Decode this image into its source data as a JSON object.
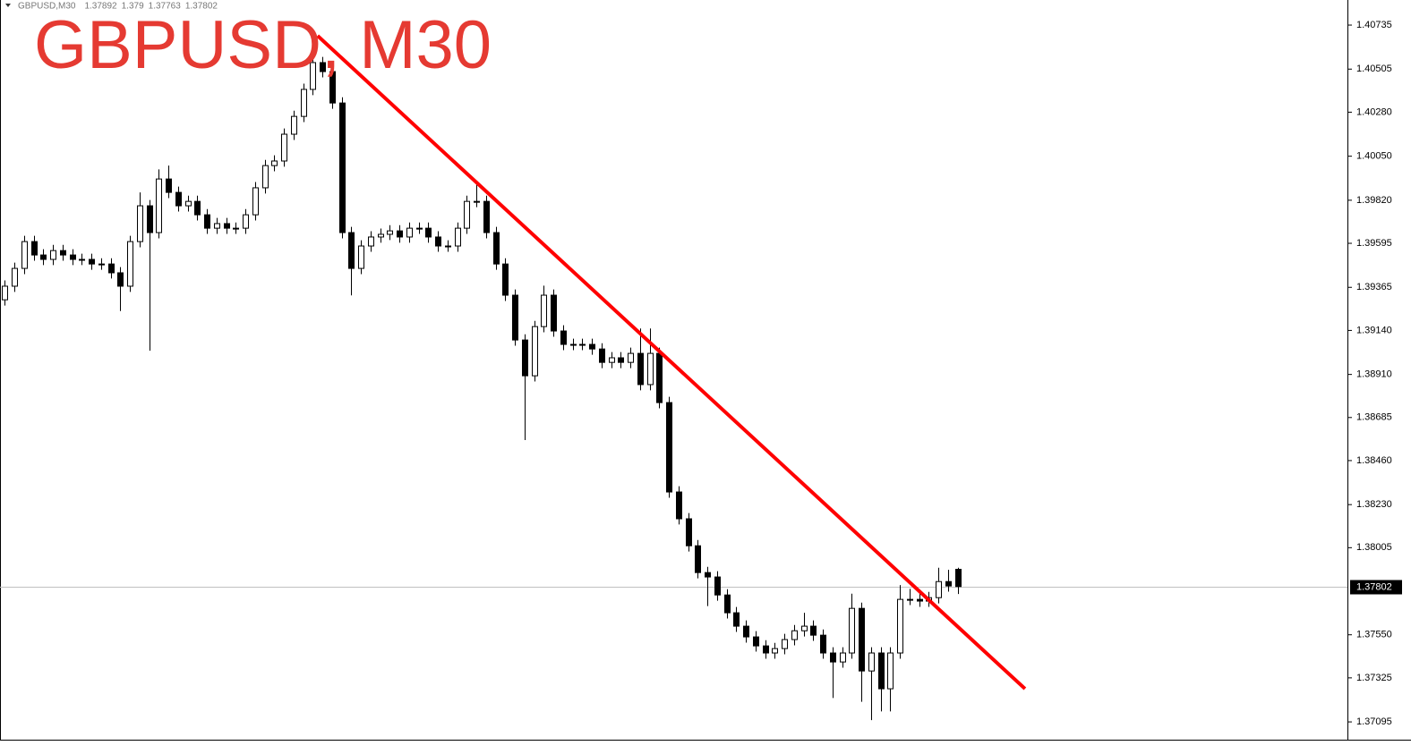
{
  "chart_data": {
    "type": "candlestick",
    "title": "GBPUSD, M30",
    "symbol": "GBPUSD,M30",
    "title_color": "#e53a32",
    "up_color": "#ffffff",
    "down_color": "#000000",
    "wick_color": "#000000",
    "open": [
      1.393,
      1.39371,
      1.39464,
      1.39604,
      1.39534,
      1.39511,
      1.39557,
      1.39534,
      1.39511,
      1.39511,
      1.39487,
      1.39487,
      1.39441,
      1.39371,
      1.39604,
      1.39791,
      1.39651,
      1.39931,
      1.39861,
      1.39791,
      1.39814,
      1.39744,
      1.39674,
      1.39698,
      1.39674,
      1.39674,
      1.39744,
      1.39885,
      1.40001,
      1.40025,
      1.40165,
      1.40258,
      1.40399,
      1.40539,
      1.40492,
      1.40328,
      1.39651,
      1.39464,
      1.39581,
      1.39628,
      1.39642,
      1.3966,
      1.39628,
      1.39674,
      1.39674,
      1.39628,
      1.39581,
      1.39581,
      1.39674,
      1.39814,
      1.39814,
      1.39651,
      1.39487,
      1.39324,
      1.3909,
      1.38903,
      1.3916,
      1.39324,
      1.39137,
      1.39067,
      1.39067,
      1.39067,
      1.39043,
      1.38973,
      1.38997,
      1.38973,
      1.3902,
      1.38857,
      1.3902,
      1.38763,
      1.38296,
      1.38156,
      1.38015,
      1.37875,
      1.37852,
      1.37758,
      1.37665,
      1.37595,
      1.37539,
      1.37492,
      1.37455,
      1.37478,
      1.37525,
      1.37571,
      1.37595,
      1.37548,
      1.37455,
      1.37408,
      1.37455,
      1.37688,
      1.37361,
      1.37455,
      1.37268,
      1.37455,
      1.37735,
      1.37735,
      1.37726,
      1.37744,
      1.37828,
      1.37892
    ],
    "high": [
      1.39401,
      1.39494,
      1.39634,
      1.39634,
      1.39564,
      1.39587,
      1.39587,
      1.39564,
      1.39541,
      1.39541,
      1.39517,
      1.39517,
      1.39471,
      1.39634,
      1.39861,
      1.39821,
      1.39981,
      1.40001,
      1.39891,
      1.39844,
      1.39844,
      1.39774,
      1.39728,
      1.39728,
      1.39704,
      1.39774,
      1.39915,
      1.40031,
      1.40055,
      1.40195,
      1.40288,
      1.40429,
      1.40679,
      1.40569,
      1.40522,
      1.40358,
      1.39681,
      1.39611,
      1.39658,
      1.39672,
      1.3969,
      1.3969,
      1.39704,
      1.39704,
      1.39704,
      1.39658,
      1.39611,
      1.39704,
      1.39844,
      1.39908,
      1.39844,
      1.39681,
      1.39517,
      1.39354,
      1.3912,
      1.3919,
      1.39374,
      1.39354,
      1.39167,
      1.39097,
      1.39097,
      1.39097,
      1.39073,
      1.39027,
      1.39027,
      1.3905,
      1.3915,
      1.3915,
      1.3905,
      1.38793,
      1.38326,
      1.38186,
      1.38045,
      1.37905,
      1.37882,
      1.37788,
      1.37695,
      1.37625,
      1.37569,
      1.37522,
      1.37508,
      1.37555,
      1.37601,
      1.37665,
      1.37625,
      1.37578,
      1.37485,
      1.37485,
      1.37765,
      1.37718,
      1.37485,
      1.37485,
      1.37485,
      1.3781,
      1.3779,
      1.37765,
      1.37774,
      1.379,
      1.3789,
      1.379
    ],
    "low": [
      1.3927,
      1.39341,
      1.39434,
      1.39504,
      1.39481,
      1.39481,
      1.39504,
      1.39481,
      1.39481,
      1.39457,
      1.39457,
      1.39411,
      1.39241,
      1.39341,
      1.39574,
      1.39034,
      1.39621,
      1.39831,
      1.39761,
      1.39761,
      1.39714,
      1.39644,
      1.39644,
      1.39644,
      1.39644,
      1.39644,
      1.39714,
      1.39855,
      1.39971,
      1.39995,
      1.40135,
      1.40228,
      1.40369,
      1.40462,
      1.40298,
      1.39621,
      1.39323,
      1.39434,
      1.39551,
      1.39598,
      1.39612,
      1.39598,
      1.39598,
      1.39644,
      1.39598,
      1.39551,
      1.39551,
      1.39551,
      1.39644,
      1.39784,
      1.39621,
      1.39457,
      1.39294,
      1.3906,
      1.38567,
      1.38873,
      1.3913,
      1.39107,
      1.39037,
      1.39037,
      1.39037,
      1.39013,
      1.38943,
      1.38943,
      1.38943,
      1.38943,
      1.38827,
      1.38827,
      1.38733,
      1.38266,
      1.38126,
      1.37985,
      1.37845,
      1.377,
      1.37728,
      1.37635,
      1.37565,
      1.37509,
      1.37462,
      1.37425,
      1.37425,
      1.37448,
      1.37495,
      1.37541,
      1.37518,
      1.37425,
      1.3722,
      1.37378,
      1.37425,
      1.372,
      1.37104,
      1.3715,
      1.3715,
      1.37425,
      1.37705,
      1.37696,
      1.37696,
      1.37714,
      1.37775,
      1.37763
    ],
    "close": [
      1.39371,
      1.39464,
      1.39604,
      1.39534,
      1.39511,
      1.39557,
      1.39534,
      1.39511,
      1.39511,
      1.39487,
      1.39487,
      1.39441,
      1.39371,
      1.39604,
      1.39791,
      1.39651,
      1.39931,
      1.39861,
      1.39791,
      1.39814,
      1.39744,
      1.39674,
      1.39698,
      1.39674,
      1.39674,
      1.39744,
      1.39885,
      1.40001,
      1.40025,
      1.40165,
      1.40258,
      1.40399,
      1.40539,
      1.40492,
      1.40328,
      1.39651,
      1.39464,
      1.39581,
      1.39628,
      1.39642,
      1.3966,
      1.39628,
      1.39674,
      1.39674,
      1.39628,
      1.39581,
      1.39581,
      1.39674,
      1.39814,
      1.39814,
      1.39651,
      1.39487,
      1.39324,
      1.3909,
      1.38903,
      1.3916,
      1.39324,
      1.39137,
      1.39067,
      1.39067,
      1.39067,
      1.39043,
      1.38973,
      1.38997,
      1.38973,
      1.3902,
      1.38857,
      1.3902,
      1.38763,
      1.38296,
      1.38156,
      1.38015,
      1.37875,
      1.37852,
      1.37758,
      1.37665,
      1.37595,
      1.37539,
      1.37492,
      1.37455,
      1.37478,
      1.37525,
      1.37571,
      1.37595,
      1.37548,
      1.37455,
      1.37408,
      1.37455,
      1.37688,
      1.37361,
      1.37455,
      1.37268,
      1.37455,
      1.37735,
      1.37735,
      1.37726,
      1.37744,
      1.37828,
      1.37805,
      1.37802
    ],
    "xlim": [
      0,
      140
    ],
    "ylim": [
      1.37002,
      1.40866
    ],
    "yticks": [
      1.40735,
      1.40505,
      {
        "value": 1.4028,
        "label": "1.40280"
      },
      {
        "value": 1.4005,
        "label": "1.40050"
      },
      {
        "value": 1.3982,
        "label": "1.39820"
      },
      1.39595,
      1.39365,
      {
        "value": 1.3914,
        "label": "1.39140"
      },
      {
        "value": 1.3891,
        "label": "1.38910"
      },
      1.38685,
      {
        "value": 1.3846,
        "label": "1.38460"
      },
      {
        "value": 1.3823,
        "label": "1.38230"
      },
      1.38005,
      {
        "value": 1.3755,
        "label": "1.37550"
      },
      1.37325,
      1.37095
    ],
    "current_price": 1.37802,
    "trendline": {
      "x": [
        33,
        106.5
      ],
      "y": [
        1.40679,
        1.37268
      ],
      "color": "#ff0000"
    }
  }
}
